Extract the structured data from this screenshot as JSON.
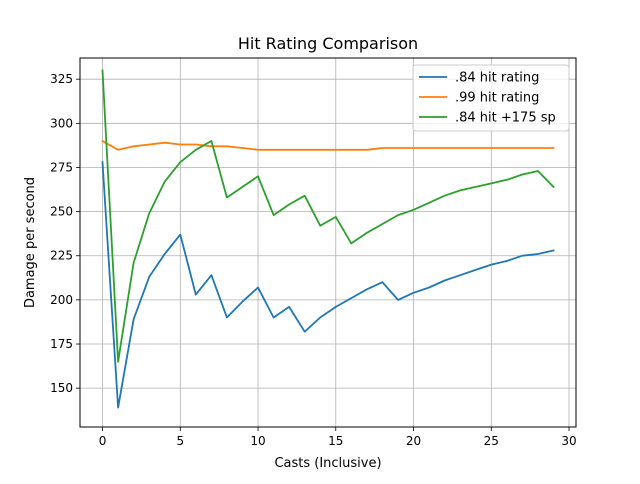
{
  "chart_data": {
    "type": "line",
    "title": "Hit Rating Comparison",
    "xlabel": "Casts (Inclusive)",
    "ylabel": "Damage per second",
    "xlim": [
      -1.45,
      30.45
    ],
    "ylim": [
      128,
      337
    ],
    "xticks": [
      0,
      5,
      10,
      15,
      20,
      25,
      30
    ],
    "yticks": [
      150,
      175,
      200,
      225,
      250,
      275,
      300,
      325
    ],
    "grid": true,
    "legend_position": "top-right",
    "x": [
      0,
      1,
      2,
      3,
      4,
      5,
      6,
      7,
      8,
      9,
      10,
      11,
      12,
      13,
      14,
      15,
      16,
      17,
      18,
      19,
      20,
      21,
      22,
      23,
      24,
      25,
      26,
      27,
      28,
      29
    ],
    "series": [
      {
        "name": ".84 hit rating",
        "color": "#1f77b4",
        "values": [
          278,
          139,
          189,
          213,
          226,
          237,
          203,
          214,
          190,
          199,
          207,
          190,
          196,
          182,
          190,
          196,
          201,
          206,
          210,
          200,
          204,
          207,
          211,
          214,
          217,
          220,
          222,
          225,
          226,
          228
        ]
      },
      {
        "name": ".99 hit rating",
        "color": "#ff7f0e",
        "values": [
          290,
          285,
          287,
          288,
          289,
          288,
          288,
          287,
          287,
          286,
          285,
          285,
          285,
          285,
          285,
          285,
          285,
          285,
          286,
          286,
          286,
          286,
          286,
          286,
          286,
          286,
          286,
          286,
          286,
          286
        ]
      },
      {
        "name": ".84 hit +175 sp",
        "color": "#2ca02c",
        "values": [
          330,
          165,
          221,
          249,
          267,
          278,
          285,
          290,
          258,
          264,
          270,
          248,
          254,
          259,
          242,
          247,
          232,
          238,
          243,
          248,
          251,
          255,
          259,
          262,
          264,
          266,
          268,
          271,
          273,
          264
        ]
      }
    ]
  }
}
